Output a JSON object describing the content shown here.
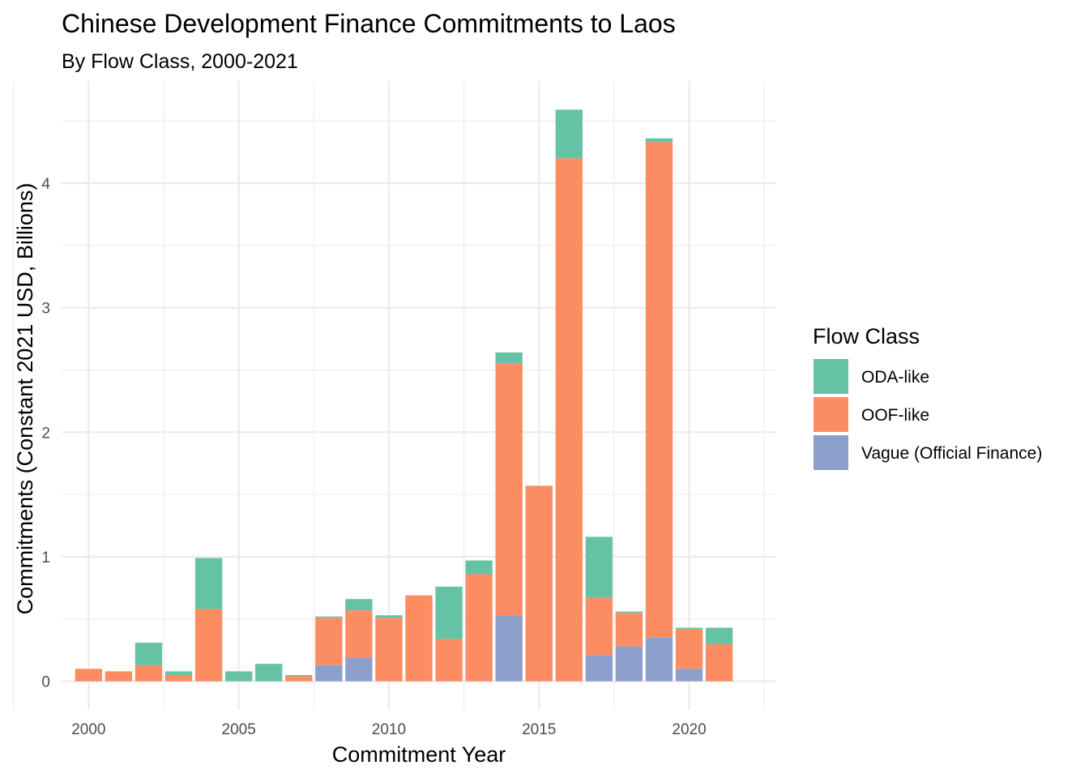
{
  "chart_data": {
    "type": "bar",
    "stacked": true,
    "title": "Chinese Development Finance Commitments to Laos",
    "subtitle": "By Flow Class, 2000-2021",
    "xlabel": "Commitment Year",
    "ylabel": "Commitments (Constant 2021 USD, Billions)",
    "xlim": [
      1999.1,
      2022.9
    ],
    "ylim": [
      -0.23,
      4.82
    ],
    "x_ticks": [
      2000,
      2005,
      2010,
      2015,
      2020
    ],
    "y_ticks": [
      0,
      1,
      2,
      3,
      4
    ],
    "legend_title": "Flow Class",
    "legend_position": "right",
    "grid": true,
    "categories": [
      2000,
      2001,
      2002,
      2003,
      2004,
      2005,
      2006,
      2007,
      2008,
      2009,
      2010,
      2011,
      2012,
      2013,
      2014,
      2015,
      2016,
      2017,
      2018,
      2019,
      2020,
      2021
    ],
    "series": [
      {
        "name": "Vague (Official Finance)",
        "color": "#8da0cb",
        "values": [
          0,
          0,
          0,
          0,
          0,
          0,
          0,
          0,
          0.13,
          0.19,
          0,
          0,
          0,
          0,
          0.53,
          0,
          0,
          0.21,
          0.28,
          0.35,
          0.1,
          0
        ]
      },
      {
        "name": "OOF-like",
        "color": "#fc8d62",
        "values": [
          0.1,
          0.08,
          0.13,
          0.05,
          0.58,
          0,
          0,
          0.04,
          0.38,
          0.38,
          0.51,
          0.69,
          0.34,
          0.86,
          2.02,
          1.57,
          4.2,
          0.46,
          0.27,
          3.98,
          0.32,
          0.3
        ]
      },
      {
        "name": "ODA-like",
        "color": "#66c2a5",
        "values": [
          0,
          0,
          0.18,
          0.03,
          0.41,
          0.08,
          0.14,
          0.01,
          0.01,
          0.09,
          0.02,
          0,
          0.42,
          0.11,
          0.09,
          0,
          0.39,
          0.49,
          0.01,
          0.03,
          0.01,
          0.13
        ]
      }
    ],
    "legend_order": [
      "ODA-like",
      "OOF-like",
      "Vague (Official Finance)"
    ]
  }
}
